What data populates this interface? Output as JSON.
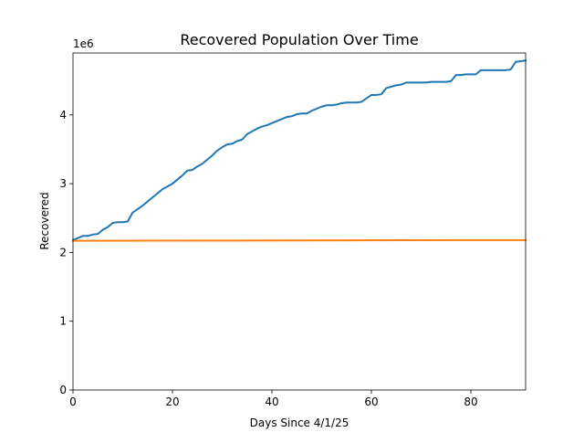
{
  "chart_data": {
    "type": "line",
    "title": "Recovered Population Over Time",
    "xlabel": "Days Since 4/1/25",
    "ylabel": "Recovered",
    "y_scale_label": "1e6",
    "xlim": [
      0,
      91
    ],
    "ylim": [
      0,
      4.9
    ],
    "y_unit_multiplier": 1000000,
    "x_ticks": [
      0,
      20,
      40,
      60,
      80
    ],
    "x_tick_labels": [
      "0",
      "20",
      "40",
      "60",
      "80"
    ],
    "y_ticks": [
      0,
      1,
      2,
      3,
      4
    ],
    "y_tick_labels": [
      "0",
      "1",
      "2",
      "3",
      "4"
    ],
    "grid": false,
    "legend": "none",
    "series": [
      {
        "color": "#1f77b4",
        "x": [
          0,
          1,
          2,
          3,
          4,
          5,
          6,
          7,
          8,
          9,
          10,
          11,
          12,
          13,
          14,
          15,
          16,
          17,
          18,
          19,
          20,
          21,
          22,
          23,
          24,
          25,
          26,
          27,
          28,
          29,
          30,
          31,
          32,
          33,
          34,
          35,
          36,
          37,
          38,
          39,
          40,
          41,
          42,
          43,
          44,
          45,
          46,
          47,
          48,
          49,
          50,
          51,
          52,
          53,
          54,
          55,
          56,
          57,
          58,
          59,
          60,
          61,
          62,
          63,
          64,
          65,
          66,
          67,
          68,
          69,
          70,
          71,
          72,
          73,
          74,
          75,
          76,
          77,
          78,
          79,
          80,
          81,
          82,
          83,
          84,
          85,
          86,
          87,
          88,
          89,
          90,
          91
        ],
        "values": [
          2.18,
          2.21,
          2.24,
          2.24,
          2.26,
          2.27,
          2.33,
          2.37,
          2.43,
          2.44,
          2.44,
          2.45,
          2.58,
          2.63,
          2.68,
          2.74,
          2.8,
          2.86,
          2.92,
          2.96,
          3.0,
          3.06,
          3.12,
          3.19,
          3.2,
          3.25,
          3.29,
          3.35,
          3.41,
          3.48,
          3.53,
          3.57,
          3.58,
          3.62,
          3.64,
          3.72,
          3.76,
          3.8,
          3.83,
          3.85,
          3.88,
          3.91,
          3.94,
          3.97,
          3.98,
          4.01,
          4.02,
          4.02,
          4.06,
          4.09,
          4.12,
          4.14,
          4.14,
          4.15,
          4.17,
          4.18,
          4.18,
          4.18,
          4.19,
          4.24,
          4.29,
          4.29,
          4.3,
          4.39,
          4.41,
          4.43,
          4.44,
          4.47,
          4.47,
          4.47,
          4.47,
          4.47,
          4.48,
          4.48,
          4.48,
          4.48,
          4.49,
          4.58,
          4.58,
          4.59,
          4.59,
          4.59,
          4.65,
          4.65,
          4.65,
          4.65,
          4.65,
          4.65,
          4.66,
          4.77,
          4.78,
          4.79
        ]
      },
      {
        "color": "#ff7f0e",
        "x": [
          0,
          91
        ],
        "values": [
          2.17,
          2.18
        ]
      }
    ]
  }
}
